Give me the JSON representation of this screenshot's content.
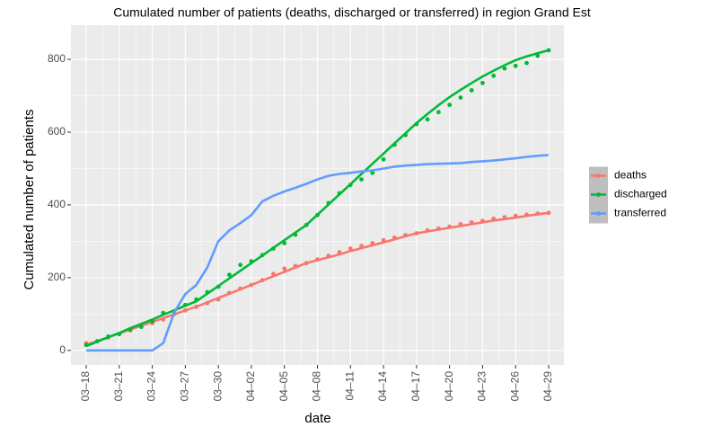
{
  "chart_data": {
    "type": "line",
    "title": "Cumulated number of patients (deaths, discharged or transferred) in region Grand Est",
    "x_label": "date",
    "y_label": "Cumulated number of patients",
    "categories": [
      "03–18",
      null,
      null,
      "03–21",
      null,
      null,
      "03–24",
      null,
      null,
      "03–27",
      null,
      null,
      "03–30",
      null,
      null,
      "04–02",
      null,
      null,
      "04–05",
      null,
      null,
      "04–08",
      null,
      null,
      "04–11",
      null,
      null,
      "04–14",
      null,
      null,
      "04–17",
      null,
      null,
      "04–20",
      null,
      null,
      "04–23",
      null,
      null,
      "04–26",
      null,
      null,
      "04–29"
    ],
    "series": [
      {
        "name": "deaths",
        "color": "#F8766D",
        "values": [
          20,
          25,
          35,
          45,
          55,
          65,
          75,
          85,
          100,
          110,
          120,
          130,
          140,
          158,
          170,
          180,
          193,
          210,
          225,
          232,
          240,
          250,
          260,
          270,
          280,
          287,
          295,
          303,
          310,
          317,
          322,
          330,
          335,
          340,
          347,
          352,
          356,
          362,
          366,
          370,
          373,
          376,
          378
        ],
        "trend": [
          15,
          26,
          36,
          47,
          57,
          68,
          78,
          89,
          99,
          110,
          120,
          132,
          144,
          156,
          168,
          180,
          192,
          204,
          216,
          228,
          240,
          248,
          256,
          264,
          273,
          281,
          289,
          297,
          305,
          314,
          322,
          327,
          332,
          337,
          342,
          347,
          352,
          357,
          361,
          365,
          370,
          374,
          378
        ]
      },
      {
        "name": "discharged",
        "color": "#00BA38",
        "values": [
          15,
          25,
          38,
          45,
          58,
          65,
          80,
          103,
          108,
          125,
          140,
          160,
          175,
          208,
          235,
          245,
          262,
          280,
          295,
          318,
          345,
          372,
          405,
          432,
          455,
          470,
          488,
          525,
          565,
          592,
          622,
          635,
          655,
          675,
          695,
          715,
          735,
          755,
          775,
          782,
          790,
          810,
          825
        ],
        "trend": [
          12,
          24,
          36,
          48,
          61,
          73,
          85,
          98,
          110,
          123,
          135,
          156,
          177,
          198,
          219,
          240,
          261,
          282,
          303,
          324,
          345,
          373,
          401,
          429,
          457,
          485,
          513,
          541,
          569,
          597,
          625,
          650,
          674,
          696,
          716,
          735,
          753,
          769,
          784,
          798,
          808,
          817,
          825
        ]
      },
      {
        "name": "transferred",
        "color": "#619CFF",
        "values": [
          0,
          0,
          0,
          0,
          0,
          0,
          0,
          20,
          105,
          155,
          180,
          228,
          300,
          330,
          350,
          372,
          410,
          425,
          437,
          447,
          458,
          470,
          480,
          485,
          488,
          492,
          495,
          500,
          505,
          508,
          510,
          512,
          513,
          514,
          515,
          518,
          520,
          522,
          525,
          528,
          532,
          535,
          537
        ]
      }
    ],
    "ylim": [
      -40,
      894
    ],
    "yticks": [
      0,
      200,
      400,
      600,
      800
    ],
    "grid": true,
    "legend": "right"
  }
}
